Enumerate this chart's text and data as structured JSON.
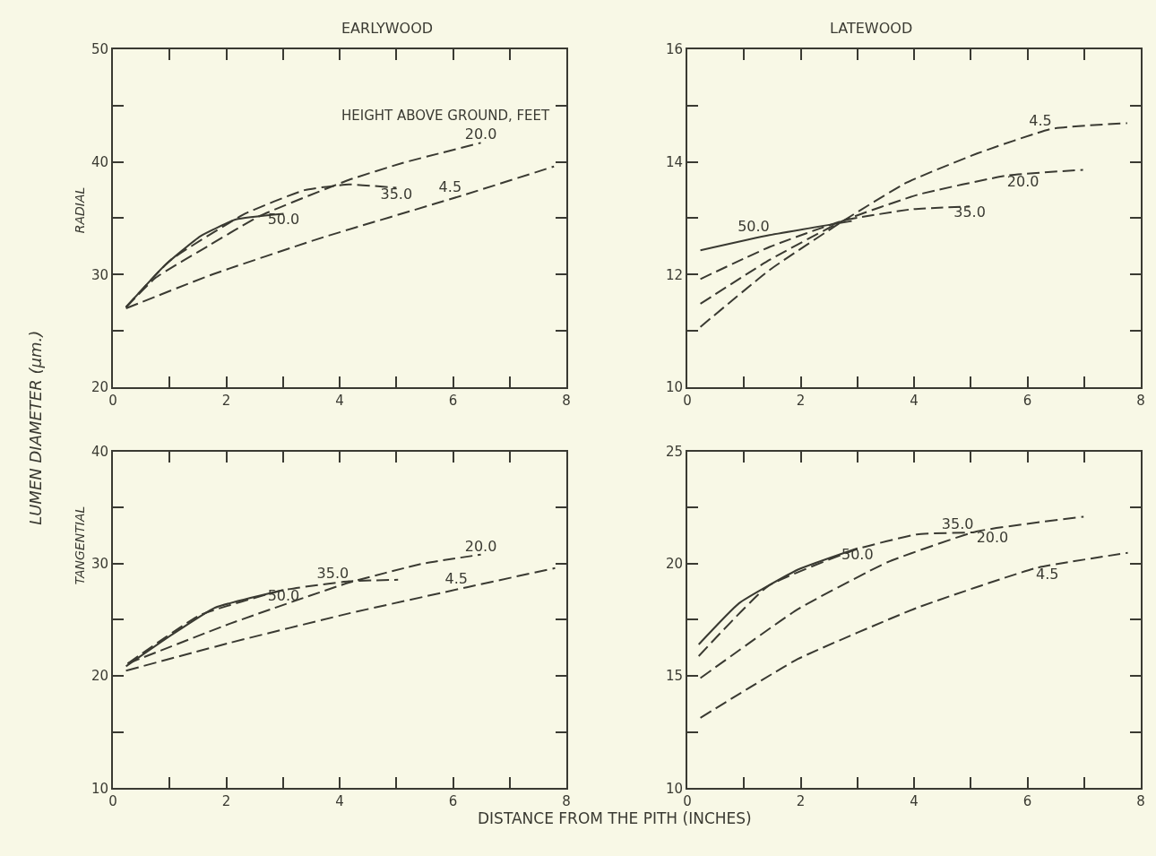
{
  "chart_data": [
    {
      "type": "line",
      "title": "EARLYWOOD",
      "ylabel": "RADIAL",
      "xlim": [
        0,
        8
      ],
      "ylim": [
        20,
        50
      ],
      "xticks": [
        0,
        {
          "value": 1,
          "label": null
        },
        2,
        {
          "value": 3,
          "label": null
        },
        4,
        {
          "value": 5,
          "label": null
        },
        6,
        {
          "value": 7,
          "label": null
        },
        8
      ],
      "yticks": [
        20,
        {
          "value": 25,
          "label": null
        },
        30,
        {
          "value": 35,
          "label": null
        },
        40,
        {
          "value": 45,
          "label": null
        },
        50
      ],
      "grid": false,
      "legend": false,
      "series": [
        {
          "name": "50.0",
          "color": "#3a3a32",
          "line_style": "solid",
          "x": [
            0.23,
            0.91,
            1.54,
            2.17,
            3.01
          ],
          "values": [
            27.1,
            30.8,
            33.4,
            34.9,
            35.4
          ]
        },
        {
          "name": "35.0",
          "color": "#3a3a32",
          "line_style": "dashed",
          "x": [
            0.23,
            1.02,
            2.33,
            3.38,
            4.16,
            5.0
          ],
          "values": [
            27.1,
            31.3,
            35.4,
            37.5,
            38.0,
            37.7
          ]
        },
        {
          "name": "20.0",
          "color": "#3a3a32",
          "line_style": "dashed",
          "x": [
            0.23,
            0.75,
            1.7,
            2.59,
            4.16,
            5.1,
            6.49
          ],
          "values": [
            27.1,
            29.7,
            32.6,
            35.2,
            38.4,
            39.9,
            41.7
          ]
        },
        {
          "name": "4.5",
          "color": "#3a3a32",
          "line_style": "dashed",
          "x": [
            0.23,
            1.75,
            3.64,
            6.15,
            7.78
          ],
          "values": [
            27.0,
            30.0,
            33.2,
            37.0,
            39.6
          ]
        }
      ],
      "annotations": [
        "HEIGHT ABOVE GROUND, FEET",
        "LUMEN DIAMETER (μm.)"
      ]
    },
    {
      "type": "line",
      "title": "LATEWOOD",
      "xlim": [
        0,
        8
      ],
      "ylim": [
        10,
        16
      ],
      "xticks": [
        0,
        {
          "value": 1,
          "label": null
        },
        2,
        {
          "value": 3,
          "label": null
        },
        4,
        {
          "value": 5,
          "label": null
        },
        6,
        {
          "value": 7,
          "label": null
        },
        8
      ],
      "yticks": [
        10,
        {
          "value": 11,
          "label": null
        },
        12,
        {
          "value": 13,
          "label": null
        },
        14,
        {
          "value": 15,
          "label": null
        },
        16
      ],
      "grid": false,
      "legend": false,
      "series": [
        {
          "name": "50.0",
          "color": "#3a3a32",
          "line_style": "solid",
          "x": [
            0.23,
            1.45,
            2.9
          ],
          "values": [
            12.43,
            12.7,
            12.95
          ]
        },
        {
          "name": "35.0",
          "color": "#3a3a32",
          "line_style": "dashed",
          "x": [
            0.23,
            1.45,
            2.76,
            3.96,
            4.98
          ],
          "values": [
            11.92,
            12.49,
            12.96,
            13.16,
            13.21
          ]
        },
        {
          "name": "20.0",
          "color": "#3a3a32",
          "line_style": "dashed",
          "x": [
            0.23,
            1.45,
            2.76,
            4.07,
            5.64,
            6.98
          ],
          "values": [
            11.48,
            12.26,
            12.96,
            13.42,
            13.76,
            13.86
          ]
        },
        {
          "name": "4.5",
          "color": "#3a3a32",
          "line_style": "dashed",
          "x": [
            0.23,
            1.45,
            2.76,
            3.86,
            5.11,
            6.43,
            7.76
          ],
          "values": [
            11.07,
            12.08,
            12.96,
            13.63,
            14.15,
            14.59,
            14.69
          ]
        }
      ]
    },
    {
      "type": "line",
      "ylabel": "TANGENTIAL",
      "xlabel": "DISTANCE FROM THE PITH (INCHES)",
      "xlim": [
        0,
        8
      ],
      "ylim": [
        10,
        40
      ],
      "xticks": [
        0,
        {
          "value": 1,
          "label": null
        },
        2,
        {
          "value": 3,
          "label": null
        },
        4,
        {
          "value": 5,
          "label": null
        },
        6,
        {
          "value": 7,
          "label": null
        },
        8
      ],
      "yticks": [
        10,
        {
          "value": 15,
          "label": null
        },
        20,
        {
          "value": 25,
          "label": null
        },
        30,
        {
          "value": 35,
          "label": null
        },
        40
      ],
      "grid": false,
      "legend": false,
      "series": [
        {
          "name": "50.0",
          "color": "#3a3a32",
          "line_style": "solid",
          "x": [
            0.23,
            1.02,
            1.8,
            3.01
          ],
          "values": [
            20.85,
            23.6,
            26.07,
            27.64
          ]
        },
        {
          "name": "35.0",
          "color": "#3a3a32",
          "line_style": "dashed",
          "x": [
            0.26,
            1.54,
            3.01,
            4.16,
            5.03
          ],
          "values": [
            21.1,
            25.42,
            27.64,
            28.42,
            28.56
          ]
        },
        {
          "name": "20.0",
          "color": "#3a3a32",
          "line_style": "dashed",
          "x": [
            0.26,
            2.06,
            4.16,
            5.47,
            6.49
          ],
          "values": [
            21.1,
            24.64,
            28.3,
            30.0,
            30.8
          ]
        },
        {
          "name": "4.5",
          "color": "#3a3a32",
          "line_style": "dashed",
          "x": [
            0.23,
            2.06,
            4.16,
            6.26,
            7.8
          ],
          "values": [
            20.46,
            22.94,
            25.56,
            27.91,
            29.6
          ]
        }
      ]
    },
    {
      "type": "line",
      "xlim": [
        0,
        8
      ],
      "ylim": [
        10,
        25
      ],
      "xticks": [
        0,
        {
          "value": 1,
          "label": null
        },
        2,
        {
          "value": 3,
          "label": null
        },
        4,
        {
          "value": 5,
          "label": null
        },
        6,
        {
          "value": 7,
          "label": null
        },
        8
      ],
      "yticks": [
        10,
        {
          "value": 12.5,
          "label": null
        },
        15,
        {
          "value": 17.5,
          "label": null
        },
        20,
        {
          "value": 22.5,
          "label": null
        },
        25
      ],
      "grid": false,
      "legend": false,
      "series": [
        {
          "name": "50.0",
          "color": "#3a3a32",
          "line_style": "solid",
          "x": [
            0.2,
            0.91,
            1.95,
            3.0
          ],
          "values": [
            16.4,
            18.23,
            19.73,
            20.68
          ]
        },
        {
          "name": "35.0",
          "color": "#3a3a32",
          "line_style": "dashed",
          "x": [
            0.2,
            1.43,
            3.0,
            4.05,
            5.05
          ],
          "values": [
            15.88,
            19.01,
            20.65,
            21.3,
            21.39
          ]
        },
        {
          "name": "20.0",
          "color": "#3a3a32",
          "line_style": "dashed",
          "x": [
            0.23,
            1.95,
            3.53,
            5.1,
            6.99
          ],
          "values": [
            14.9,
            17.97,
            20.06,
            21.43,
            22.09
          ]
        },
        {
          "name": "4.5",
          "color": "#3a3a32",
          "line_style": "dashed",
          "x": [
            0.23,
            1.95,
            4.05,
            6.15,
            7.77
          ],
          "values": [
            13.13,
            15.75,
            18.03,
            19.8,
            20.48
          ]
        }
      ]
    }
  ]
}
